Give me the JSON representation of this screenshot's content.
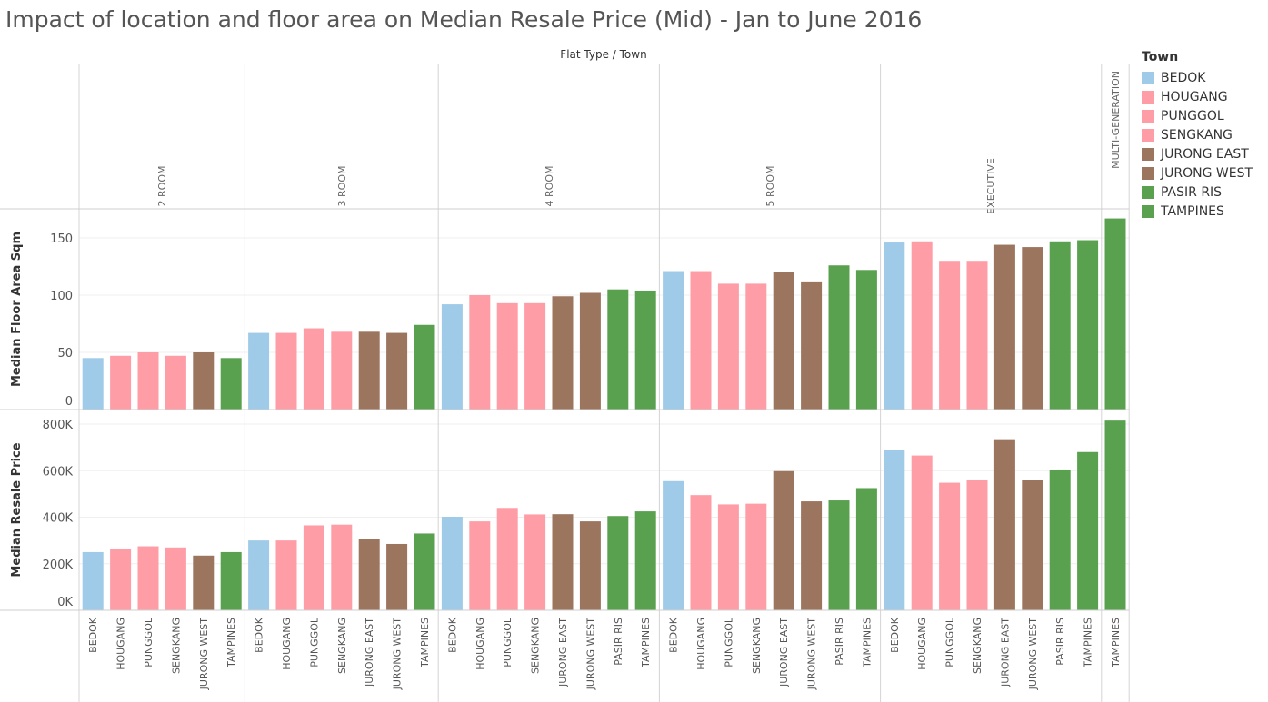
{
  "title": "Impact of location and floor area on Median Resale Price (Mid) - Jan to June 2016",
  "legend": {
    "title": "Town",
    "items": [
      {
        "label": "BEDOK",
        "color": "#a0cbe8"
      },
      {
        "label": "HOUGANG",
        "color": "#ff9da7"
      },
      {
        "label": "PUNGGOL",
        "color": "#ff9da7"
      },
      {
        "label": "SENGKANG",
        "color": "#ff9da7"
      },
      {
        "label": "JURONG EAST",
        "color": "#9c755f"
      },
      {
        "label": "JURONG WEST",
        "color": "#9c755f"
      },
      {
        "label": "PASIR RIS",
        "color": "#59a14f"
      },
      {
        "label": "TAMPINES",
        "color": "#59a14f"
      }
    ]
  },
  "chart_data": {
    "type": "bar",
    "column_header": "Flat Type  /  Town",
    "grid": true,
    "rows": [
      {
        "measure": "Median Floor Area Sqm",
        "ylim": [
          0,
          170
        ],
        "ticks": [
          0,
          50,
          100,
          150
        ],
        "tick_labels": [
          "0",
          "50",
          "100",
          "150"
        ]
      },
      {
        "measure": "Median Resale Price",
        "ylim": [
          0,
          820000
        ],
        "ticks": [
          0,
          200000,
          400000,
          600000,
          800000
        ],
        "tick_labels": [
          "0K",
          "200K",
          "400K",
          "600K",
          "800K"
        ]
      }
    ],
    "groups": [
      {
        "flat_type": "2 ROOM",
        "towns": [
          "BEDOK",
          "HOUGANG",
          "PUNGGOL",
          "SENGKANG",
          "JURONG WEST",
          "TAMPINES"
        ],
        "floor_area": [
          45,
          47,
          50,
          47,
          50,
          45
        ],
        "resale_price": [
          250000,
          262000,
          275000,
          270000,
          235000,
          250000
        ]
      },
      {
        "flat_type": "3 ROOM",
        "towns": [
          "BEDOK",
          "HOUGANG",
          "PUNGGOL",
          "SENGKANG",
          "JURONG EAST",
          "JURONG WEST",
          "TAMPINES"
        ],
        "floor_area": [
          67,
          67,
          71,
          68,
          68,
          67,
          74
        ],
        "resale_price": [
          300000,
          300000,
          365000,
          368000,
          305000,
          285000,
          330000
        ]
      },
      {
        "flat_type": "4 ROOM",
        "towns": [
          "BEDOK",
          "HOUGANG",
          "PUNGGOL",
          "SENGKANG",
          "JURONG EAST",
          "JURONG WEST",
          "PASIR RIS",
          "TAMPINES"
        ],
        "floor_area": [
          92,
          100,
          93,
          93,
          99,
          102,
          105,
          104
        ],
        "resale_price": [
          402000,
          382000,
          440000,
          412000,
          413000,
          382000,
          405000,
          425000
        ]
      },
      {
        "flat_type": "5 ROOM",
        "towns": [
          "BEDOK",
          "HOUGANG",
          "PUNGGOL",
          "SENGKANG",
          "JURONG EAST",
          "JURONG WEST",
          "PASIR RIS",
          "TAMPINES"
        ],
        "floor_area": [
          121,
          121,
          110,
          110,
          120,
          112,
          126,
          122
        ],
        "resale_price": [
          555000,
          495000,
          455000,
          458000,
          598000,
          468000,
          472000,
          525000
        ]
      },
      {
        "flat_type": "EXECUTIVE",
        "towns": [
          "BEDOK",
          "HOUGANG",
          "PUNGGOL",
          "SENGKANG",
          "JURONG EAST",
          "JURONG WEST",
          "PASIR RIS",
          "TAMPINES"
        ],
        "floor_area": [
          146,
          147,
          130,
          130,
          144,
          142,
          147,
          148
        ],
        "resale_price": [
          688000,
          665000,
          548000,
          562000,
          735000,
          560000,
          605000,
          680000
        ]
      },
      {
        "flat_type": "MULTI-GENERATION",
        "towns": [
          "TAMPINES"
        ],
        "floor_area": [
          167
        ],
        "resale_price": [
          815000
        ]
      }
    ]
  }
}
